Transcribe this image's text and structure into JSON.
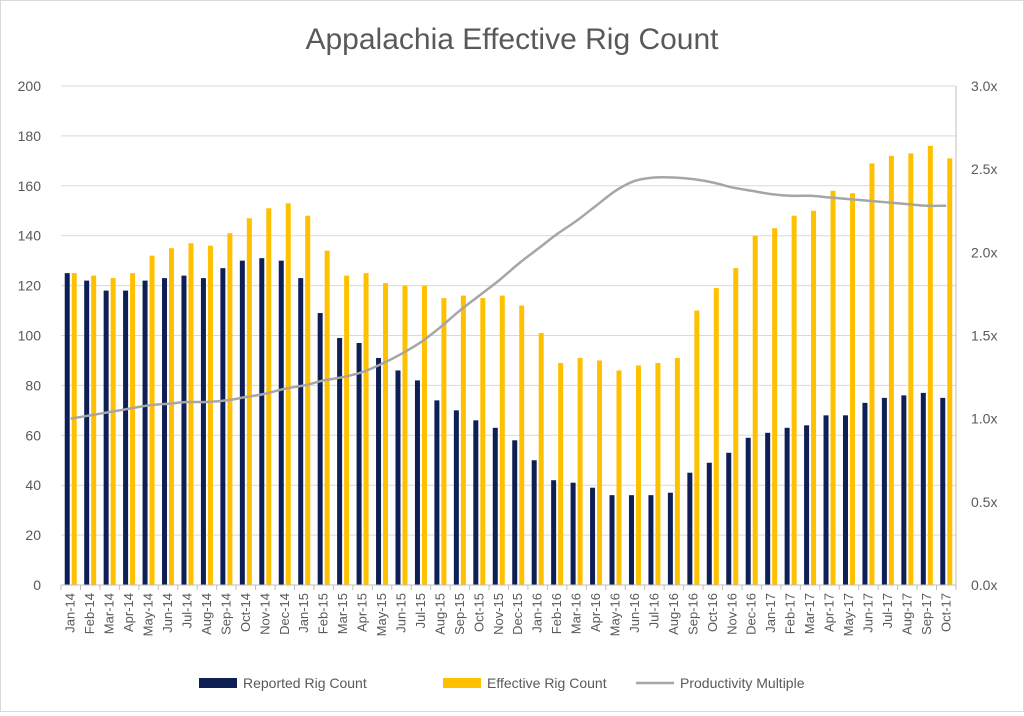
{
  "chart_data": {
    "type": "bar",
    "title": "Appalachia Effective Rig Count",
    "categories": [
      "Jan-14",
      "Feb-14",
      "Mar-14",
      "Apr-14",
      "May-14",
      "Jun-14",
      "Jul-14",
      "Aug-14",
      "Sep-14",
      "Oct-14",
      "Nov-14",
      "Dec-14",
      "Jan-15",
      "Feb-15",
      "Mar-15",
      "Apr-15",
      "May-15",
      "Jun-15",
      "Jul-15",
      "Aug-15",
      "Sep-15",
      "Oct-15",
      "Nov-15",
      "Dec-15",
      "Jan-16",
      "Feb-16",
      "Mar-16",
      "Apr-16",
      "May-16",
      "Jun-16",
      "Jul-16",
      "Aug-16",
      "Sep-16",
      "Oct-16",
      "Nov-16",
      "Dec-16",
      "Jan-17",
      "Feb-17",
      "Mar-17",
      "Apr-17",
      "May-17",
      "Jun-17",
      "Jul-17",
      "Aug-17",
      "Sep-17",
      "Oct-17"
    ],
    "series": [
      {
        "name": "Reported Rig Count",
        "type": "bar",
        "axis": "left",
        "color": "#0e1f55",
        "values": [
          125,
          122,
          118,
          118,
          122,
          123,
          124,
          123,
          127,
          130,
          131,
          130,
          123,
          109,
          99,
          97,
          91,
          86,
          82,
          74,
          70,
          66,
          63,
          58,
          50,
          42,
          41,
          39,
          36,
          36,
          36,
          37,
          45,
          49,
          53,
          59,
          61,
          63,
          64,
          68,
          68,
          73,
          75,
          76,
          77,
          75
        ]
      },
      {
        "name": "Effective Rig Count",
        "type": "bar",
        "axis": "left",
        "color": "#ffc000",
        "values": [
          125,
          124,
          123,
          125,
          132,
          135,
          137,
          136,
          141,
          147,
          151,
          153,
          148,
          134,
          124,
          125,
          121,
          120,
          120,
          115,
          116,
          115,
          116,
          112,
          101,
          89,
          91,
          90,
          86,
          88,
          89,
          91,
          110,
          119,
          127,
          140,
          143,
          148,
          150,
          158,
          157,
          169,
          172,
          173,
          176,
          171
        ]
      },
      {
        "name": "Productivity Multiple",
        "type": "line",
        "axis": "right",
        "color": "#a6a6a6",
        "values": [
          1.0,
          1.02,
          1.04,
          1.06,
          1.08,
          1.09,
          1.1,
          1.1,
          1.11,
          1.13,
          1.15,
          1.18,
          1.2,
          1.23,
          1.25,
          1.28,
          1.33,
          1.39,
          1.46,
          1.55,
          1.65,
          1.74,
          1.83,
          1.93,
          2.02,
          2.11,
          2.19,
          2.28,
          2.37,
          2.43,
          2.45,
          2.45,
          2.44,
          2.42,
          2.39,
          2.37,
          2.35,
          2.34,
          2.34,
          2.33,
          2.32,
          2.31,
          2.3,
          2.29,
          2.28,
          2.28
        ]
      }
    ],
    "y_left": {
      "min": 0,
      "max": 200,
      "step": 20,
      "ticks": [
        "0",
        "20",
        "40",
        "60",
        "80",
        "100",
        "120",
        "140",
        "160",
        "180",
        "200"
      ]
    },
    "y_right": {
      "min": 0,
      "max": 3.0,
      "step": 0.5,
      "ticks": [
        "0.0x",
        "0.5x",
        "1.0x",
        "1.5x",
        "2.0x",
        "2.5x",
        "3.0x"
      ]
    },
    "grid": true,
    "legend_position": "bottom"
  },
  "colors": {
    "reported": "#0e1f55",
    "effective": "#ffc000",
    "productivity": "#a6a6a6",
    "grid": "#d9d9d9",
    "text": "#595959"
  }
}
